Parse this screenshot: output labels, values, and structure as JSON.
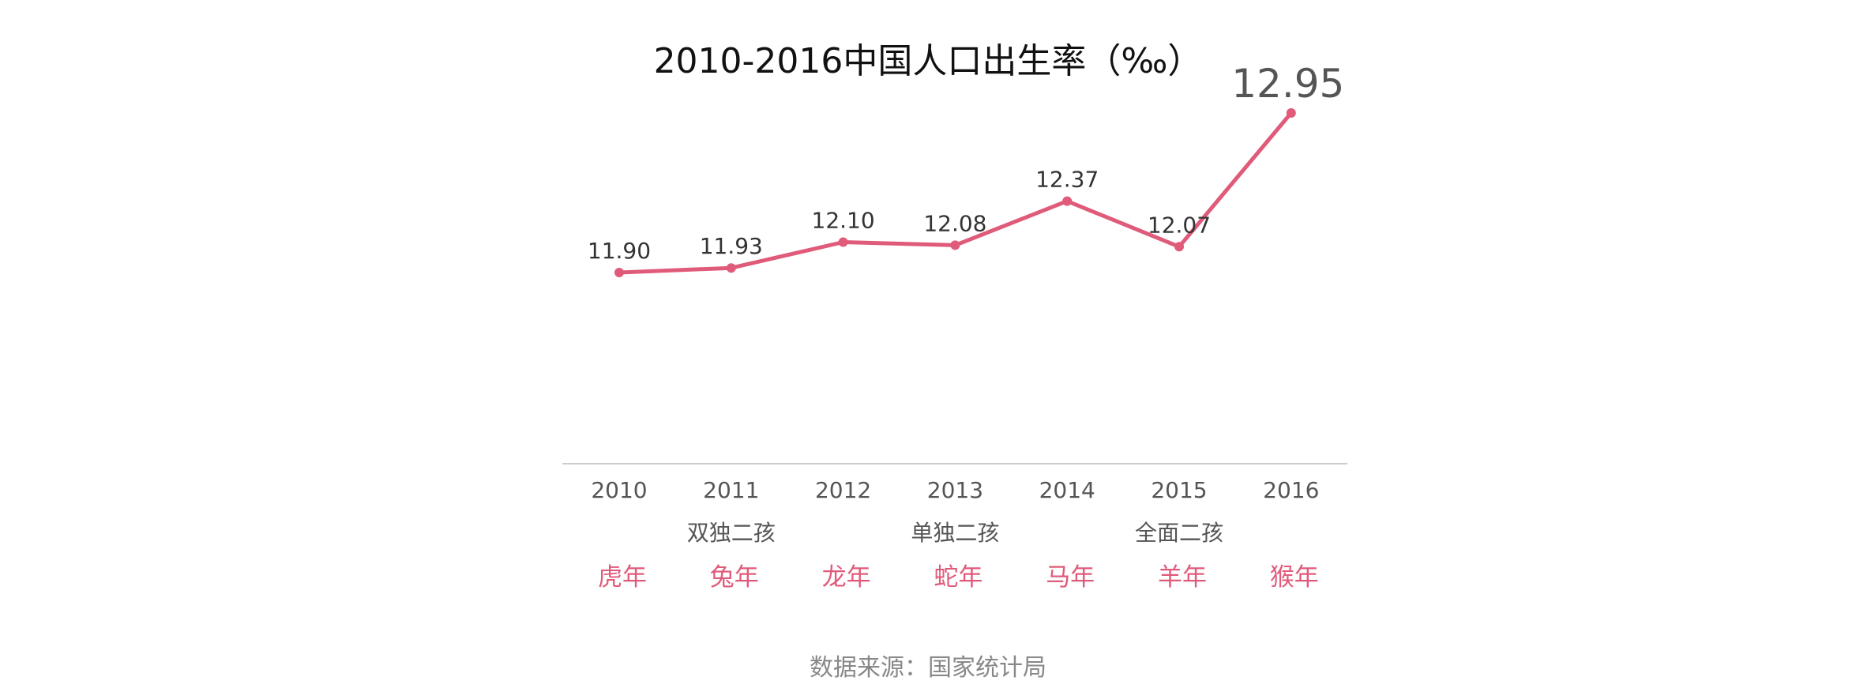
{
  "chart_data": {
    "type": "line",
    "title": "2010-2016中国人口出生率（‰）",
    "x": [
      "2010",
      "2011",
      "2012",
      "2013",
      "2014",
      "2015",
      "2016"
    ],
    "values": [
      11.9,
      11.93,
      12.1,
      12.08,
      12.37,
      12.07,
      12.95
    ],
    "value_labels": [
      "11.90",
      "11.93",
      "12.10",
      "12.08",
      "12.37",
      "12.07",
      "12.95"
    ],
    "policy_labels": [
      "",
      "双独二孩",
      "",
      "单独二孩",
      "",
      "全面二孩",
      ""
    ],
    "zodiac_labels": [
      "虎年",
      "兔年",
      "龙年",
      "蛇年",
      "马年",
      "羊年",
      "猴年"
    ],
    "source": "数据来源：国家统计局",
    "grid": false,
    "legend": "none",
    "series_color": "#e05a7a",
    "axis_color": "#cccccc"
  }
}
